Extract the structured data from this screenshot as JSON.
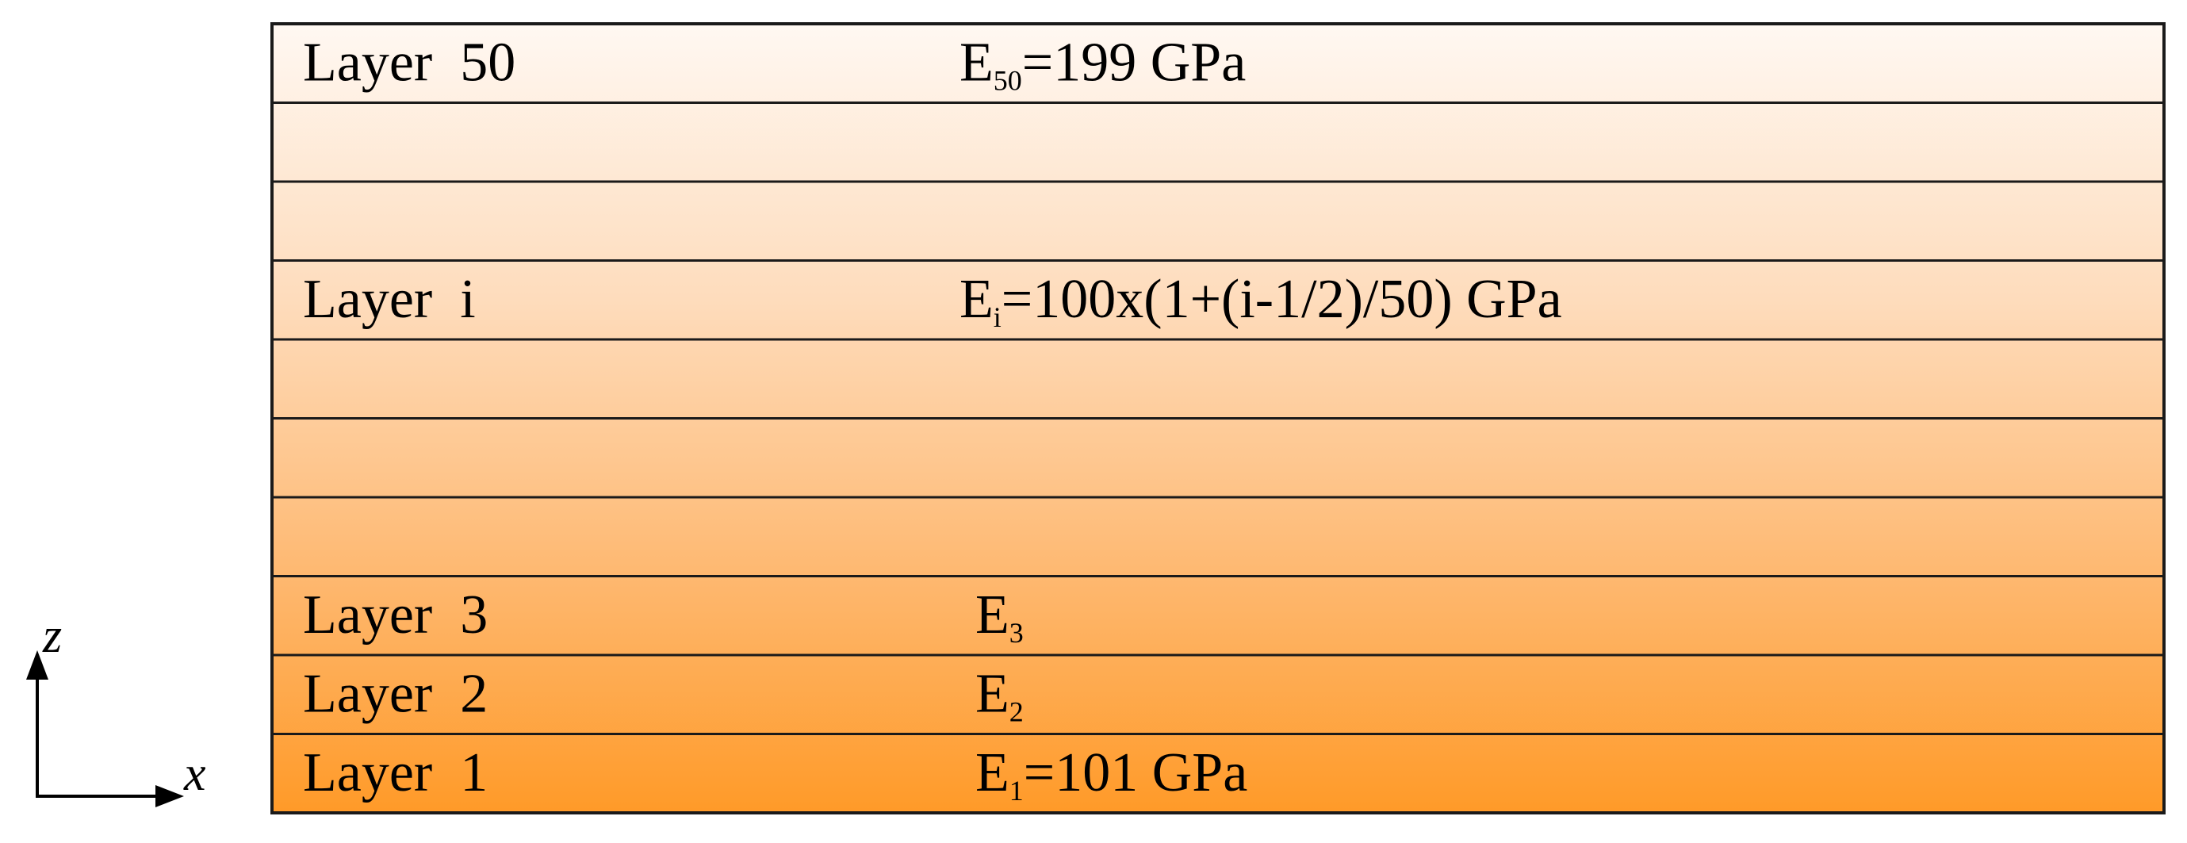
{
  "diagram": {
    "layers": [
      {
        "label": "Layer  50",
        "E_symbol": "E",
        "E_sub": "50",
        "E_value": "=199 GPa"
      },
      {
        "label": "",
        "E_symbol": "",
        "E_sub": "",
        "E_value": ""
      },
      {
        "label": "",
        "E_symbol": "",
        "E_sub": "",
        "E_value": ""
      },
      {
        "label": "Layer  i",
        "E_symbol": "E",
        "E_sub": "i",
        "E_value": "=100x(1+(i-1/2)/50) GPa"
      },
      {
        "label": "",
        "E_symbol": "",
        "E_sub": "",
        "E_value": ""
      },
      {
        "label": "",
        "E_symbol": "",
        "E_sub": "",
        "E_value": ""
      },
      {
        "label": "",
        "E_symbol": "",
        "E_sub": "",
        "E_value": ""
      },
      {
        "label": "Layer  3",
        "E_symbol": "E",
        "E_sub": "3",
        "E_value": ""
      },
      {
        "label": "Layer  2",
        "E_symbol": "E",
        "E_sub": "2",
        "E_value": ""
      },
      {
        "label": "Layer  1",
        "E_symbol": "E",
        "E_sub": "1",
        "E_value": "=101 GPa"
      }
    ],
    "axes": {
      "z_label": "z",
      "x_label": "x"
    },
    "colors": {
      "top": "#fff8f2",
      "bottom": "#ff9a28",
      "border": "#1a1a1a"
    }
  }
}
